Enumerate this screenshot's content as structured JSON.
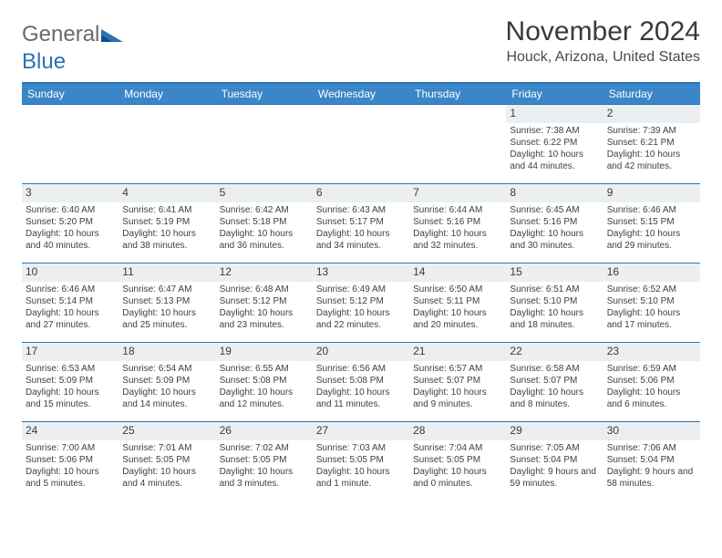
{
  "brand": {
    "name_a": "General",
    "name_b": "Blue"
  },
  "title": "November 2024",
  "location": "Houck, Arizona, United States",
  "colors": {
    "header_bar": "#3a86c8",
    "rule": "#2a72b5",
    "band_bg": "#eceff1",
    "text": "#3a3a3a",
    "title_fontsize": 30,
    "location_fontsize": 16,
    "dow_fontsize": 12,
    "cell_fontsize": 10
  },
  "days_of_week": [
    "Sunday",
    "Monday",
    "Tuesday",
    "Wednesday",
    "Thursday",
    "Friday",
    "Saturday"
  ],
  "weeks": [
    [
      {
        "n": "",
        "sr": "",
        "ss": "",
        "dl": ""
      },
      {
        "n": "",
        "sr": "",
        "ss": "",
        "dl": ""
      },
      {
        "n": "",
        "sr": "",
        "ss": "",
        "dl": ""
      },
      {
        "n": "",
        "sr": "",
        "ss": "",
        "dl": ""
      },
      {
        "n": "",
        "sr": "",
        "ss": "",
        "dl": ""
      },
      {
        "n": "1",
        "sr": "Sunrise: 7:38 AM",
        "ss": "Sunset: 6:22 PM",
        "dl": "Daylight: 10 hours and 44 minutes."
      },
      {
        "n": "2",
        "sr": "Sunrise: 7:39 AM",
        "ss": "Sunset: 6:21 PM",
        "dl": "Daylight: 10 hours and 42 minutes."
      }
    ],
    [
      {
        "n": "3",
        "sr": "Sunrise: 6:40 AM",
        "ss": "Sunset: 5:20 PM",
        "dl": "Daylight: 10 hours and 40 minutes."
      },
      {
        "n": "4",
        "sr": "Sunrise: 6:41 AM",
        "ss": "Sunset: 5:19 PM",
        "dl": "Daylight: 10 hours and 38 minutes."
      },
      {
        "n": "5",
        "sr": "Sunrise: 6:42 AM",
        "ss": "Sunset: 5:18 PM",
        "dl": "Daylight: 10 hours and 36 minutes."
      },
      {
        "n": "6",
        "sr": "Sunrise: 6:43 AM",
        "ss": "Sunset: 5:17 PM",
        "dl": "Daylight: 10 hours and 34 minutes."
      },
      {
        "n": "7",
        "sr": "Sunrise: 6:44 AM",
        "ss": "Sunset: 5:16 PM",
        "dl": "Daylight: 10 hours and 32 minutes."
      },
      {
        "n": "8",
        "sr": "Sunrise: 6:45 AM",
        "ss": "Sunset: 5:16 PM",
        "dl": "Daylight: 10 hours and 30 minutes."
      },
      {
        "n": "9",
        "sr": "Sunrise: 6:46 AM",
        "ss": "Sunset: 5:15 PM",
        "dl": "Daylight: 10 hours and 29 minutes."
      }
    ],
    [
      {
        "n": "10",
        "sr": "Sunrise: 6:46 AM",
        "ss": "Sunset: 5:14 PM",
        "dl": "Daylight: 10 hours and 27 minutes."
      },
      {
        "n": "11",
        "sr": "Sunrise: 6:47 AM",
        "ss": "Sunset: 5:13 PM",
        "dl": "Daylight: 10 hours and 25 minutes."
      },
      {
        "n": "12",
        "sr": "Sunrise: 6:48 AM",
        "ss": "Sunset: 5:12 PM",
        "dl": "Daylight: 10 hours and 23 minutes."
      },
      {
        "n": "13",
        "sr": "Sunrise: 6:49 AM",
        "ss": "Sunset: 5:12 PM",
        "dl": "Daylight: 10 hours and 22 minutes."
      },
      {
        "n": "14",
        "sr": "Sunrise: 6:50 AM",
        "ss": "Sunset: 5:11 PM",
        "dl": "Daylight: 10 hours and 20 minutes."
      },
      {
        "n": "15",
        "sr": "Sunrise: 6:51 AM",
        "ss": "Sunset: 5:10 PM",
        "dl": "Daylight: 10 hours and 18 minutes."
      },
      {
        "n": "16",
        "sr": "Sunrise: 6:52 AM",
        "ss": "Sunset: 5:10 PM",
        "dl": "Daylight: 10 hours and 17 minutes."
      }
    ],
    [
      {
        "n": "17",
        "sr": "Sunrise: 6:53 AM",
        "ss": "Sunset: 5:09 PM",
        "dl": "Daylight: 10 hours and 15 minutes."
      },
      {
        "n": "18",
        "sr": "Sunrise: 6:54 AM",
        "ss": "Sunset: 5:09 PM",
        "dl": "Daylight: 10 hours and 14 minutes."
      },
      {
        "n": "19",
        "sr": "Sunrise: 6:55 AM",
        "ss": "Sunset: 5:08 PM",
        "dl": "Daylight: 10 hours and 12 minutes."
      },
      {
        "n": "20",
        "sr": "Sunrise: 6:56 AM",
        "ss": "Sunset: 5:08 PM",
        "dl": "Daylight: 10 hours and 11 minutes."
      },
      {
        "n": "21",
        "sr": "Sunrise: 6:57 AM",
        "ss": "Sunset: 5:07 PM",
        "dl": "Daylight: 10 hours and 9 minutes."
      },
      {
        "n": "22",
        "sr": "Sunrise: 6:58 AM",
        "ss": "Sunset: 5:07 PM",
        "dl": "Daylight: 10 hours and 8 minutes."
      },
      {
        "n": "23",
        "sr": "Sunrise: 6:59 AM",
        "ss": "Sunset: 5:06 PM",
        "dl": "Daylight: 10 hours and 6 minutes."
      }
    ],
    [
      {
        "n": "24",
        "sr": "Sunrise: 7:00 AM",
        "ss": "Sunset: 5:06 PM",
        "dl": "Daylight: 10 hours and 5 minutes."
      },
      {
        "n": "25",
        "sr": "Sunrise: 7:01 AM",
        "ss": "Sunset: 5:05 PM",
        "dl": "Daylight: 10 hours and 4 minutes."
      },
      {
        "n": "26",
        "sr": "Sunrise: 7:02 AM",
        "ss": "Sunset: 5:05 PM",
        "dl": "Daylight: 10 hours and 3 minutes."
      },
      {
        "n": "27",
        "sr": "Sunrise: 7:03 AM",
        "ss": "Sunset: 5:05 PM",
        "dl": "Daylight: 10 hours and 1 minute."
      },
      {
        "n": "28",
        "sr": "Sunrise: 7:04 AM",
        "ss": "Sunset: 5:05 PM",
        "dl": "Daylight: 10 hours and 0 minutes."
      },
      {
        "n": "29",
        "sr": "Sunrise: 7:05 AM",
        "ss": "Sunset: 5:04 PM",
        "dl": "Daylight: 9 hours and 59 minutes."
      },
      {
        "n": "30",
        "sr": "Sunrise: 7:06 AM",
        "ss": "Sunset: 5:04 PM",
        "dl": "Daylight: 9 hours and 58 minutes."
      }
    ]
  ]
}
